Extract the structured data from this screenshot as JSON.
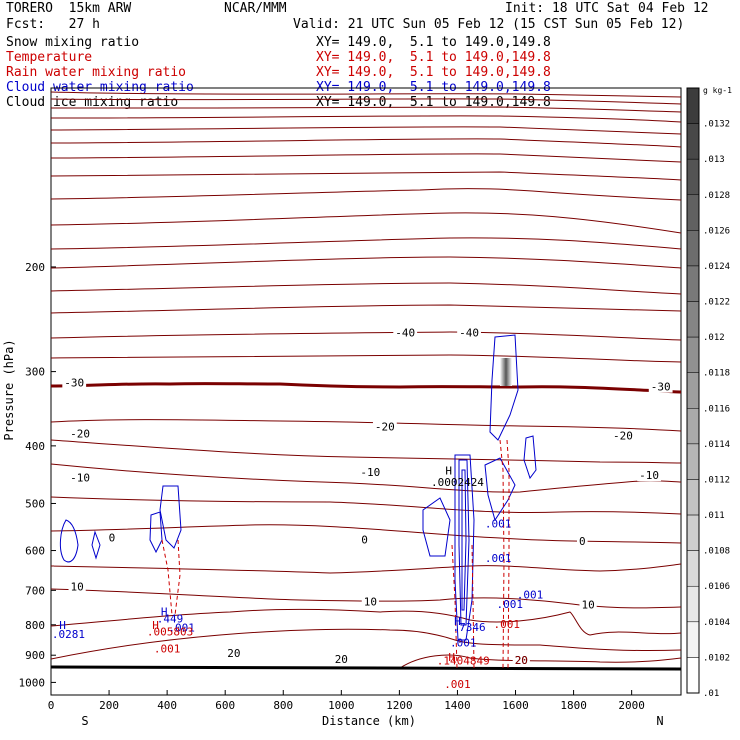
{
  "header": {
    "model": "TORERO  15km ARW",
    "center": "NCAR/MMM",
    "init": "Init: 18 UTC Sat 04 Feb 12",
    "fcst": "Fcst:   27 h",
    "valid": "Valid: 21 UTC Sun 05 Feb 12 (15 CST Sun 05 Feb 12)"
  },
  "fields": [
    {
      "name": "Snow mixing ratio",
      "color": "#000000",
      "xy": "XY= 149.0,  5.1 to 149.0,149.8"
    },
    {
      "name": "Temperature",
      "color": "#cc0000",
      "xy": "XY= 149.0,  5.1 to 149.0,149.8"
    },
    {
      "name": "Rain water mixing ratio",
      "color": "#cc0000",
      "xy": "XY= 149.0,  5.1 to 149.0,149.8"
    },
    {
      "name": "Cloud water mixing ratio",
      "color": "#0000cc",
      "xy": "XY= 149.0,  5.1 to 149.0,149.8"
    },
    {
      "name": "Cloud ice mixing ratio",
      "color": "#000000",
      "xy": "XY= 149.0,  5.1 to 149.0,149.8"
    }
  ],
  "chart_data": {
    "type": "contour",
    "xlabel": "Distance (km)",
    "ylabel": "Pressure (hPa)",
    "xlim": [
      0,
      2170
    ],
    "ylim": [
      1050,
      100
    ],
    "x_ticks": [
      0,
      200,
      400,
      600,
      800,
      1000,
      1200,
      1400,
      1600,
      1800,
      2000
    ],
    "y_ticks": [
      200,
      300,
      400,
      500,
      600,
      700,
      800,
      900,
      1000
    ],
    "y_scale": "log",
    "end_labels": {
      "left": "S",
      "right": "N"
    },
    "colorbar": {
      "units": "g kg-1",
      "ticks": [
        ".0132",
        ".013",
        ".0128",
        ".0126",
        ".0124",
        ".0122",
        ".012",
        ".0118",
        ".0116",
        ".0114",
        ".0112",
        ".011",
        ".0108",
        ".0106",
        ".0104",
        ".0102",
        ".01"
      ]
    },
    "temperature_labels": [
      {
        "text": "-40",
        "x": 1220,
        "p": 258
      },
      {
        "text": "-40",
        "x": 1440,
        "p": 258
      },
      {
        "text": "-30",
        "x": 80,
        "p": 313
      },
      {
        "text": "-30",
        "x": 2100,
        "p": 318
      },
      {
        "text": "-20",
        "x": 100,
        "p": 381
      },
      {
        "text": "-20",
        "x": 1150,
        "p": 371
      },
      {
        "text": "-20",
        "x": 1970,
        "p": 384
      },
      {
        "text": "-10",
        "x": 100,
        "p": 452
      },
      {
        "text": "-10",
        "x": 1100,
        "p": 443
      },
      {
        "text": "-10",
        "x": 2060,
        "p": 448
      },
      {
        "text": "0",
        "x": 210,
        "p": 570
      },
      {
        "text": "0",
        "x": 1080,
        "p": 575
      },
      {
        "text": "0",
        "x": 1830,
        "p": 578
      },
      {
        "text": "10",
        "x": 90,
        "p": 690
      },
      {
        "text": "10",
        "x": 1100,
        "p": 731
      },
      {
        "text": "10",
        "x": 1850,
        "p": 739
      },
      {
        "text": "20",
        "x": 630,
        "p": 893
      },
      {
        "text": "20",
        "x": 1000,
        "p": 913
      },
      {
        "text": "20",
        "x": 1620,
        "p": 917
      }
    ],
    "annotations": [
      {
        "text": "H",
        "x": 1370,
        "p": 440,
        "color": "#000000"
      },
      {
        "text": ".0002424",
        "x": 1400,
        "p": 460,
        "color": "#000000"
      },
      {
        "text": "H",
        "x": 40,
        "p": 800,
        "color": "#0000cc"
      },
      {
        "text": ".0281",
        "x": 60,
        "p": 829,
        "color": "#0000cc"
      },
      {
        "text": "H",
        "x": 390,
        "p": 760,
        "color": "#0000cc"
      },
      {
        "text": ".449",
        "x": 410,
        "p": 780,
        "color": "#0000cc"
      },
      {
        "text": "H",
        "x": 360,
        "p": 801,
        "color": "#cc0000"
      },
      {
        "text": ".001",
        "x": 450,
        "p": 808,
        "color": "#0000cc"
      },
      {
        "text": ".005803",
        "x": 410,
        "p": 821,
        "color": "#cc0000"
      },
      {
        "text": ".001",
        "x": 400,
        "p": 877,
        "color": "#cc0000"
      },
      {
        "text": ".001",
        "x": 1540,
        "p": 540,
        "color": "#0000cc"
      },
      {
        "text": ".001",
        "x": 1540,
        "p": 618,
        "color": "#0000cc"
      },
      {
        "text": ".001",
        "x": 1650,
        "p": 712,
        "color": "#0000cc"
      },
      {
        "text": ".001",
        "x": 1580,
        "p": 738,
        "color": "#0000cc"
      },
      {
        "text": ".001",
        "x": 1570,
        "p": 797,
        "color": "#cc0000"
      },
      {
        "text": "H",
        "x": 1400,
        "p": 788,
        "color": "#0000cc"
      },
      {
        "text": ".7346",
        "x": 1440,
        "p": 807,
        "color": "#0000cc"
      },
      {
        "text": ".001",
        "x": 1420,
        "p": 856,
        "color": "#0000cc"
      },
      {
        "text": "H",
        "x": 1380,
        "p": 907,
        "color": "#cc0000"
      },
      {
        "text": ".1404849",
        "x": 1420,
        "p": 918,
        "color": "#cc0000"
      },
      {
        "text": "20",
        "x": 1620,
        "p": 917,
        "color": "#8b0000"
      },
      {
        "text": ".001",
        "x": 1400,
        "p": 1006,
        "color": "#cc0000"
      }
    ]
  }
}
